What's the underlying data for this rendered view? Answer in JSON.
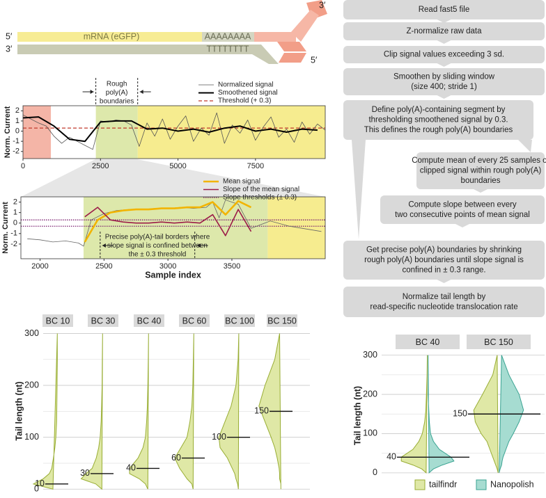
{
  "construct": {
    "top_left": "5′",
    "bottom_left": "3′",
    "mrna": "mRNA (eGFP)",
    "polya": "AAAAAAAA",
    "polyt": "TTTTTTTT",
    "top_right": "3′",
    "bottom_right": "5′"
  },
  "flowchart": {
    "steps": [
      [
        "Read fast5 file"
      ],
      [
        "Z-normalize raw data"
      ],
      [
        "Clip signal values exceeding 3 sd."
      ],
      [
        "Smoothen by sliding window",
        "(size 400;  stride 1)"
      ],
      [
        "Define poly(A)-containing segment by",
        "thresholding smoothened signal by 0.3.",
        "This defines the rough poly(A) boundaries"
      ],
      [
        "Compute mean of every 25 samples of",
        "clipped signal within rough poly(A)",
        "boundaries"
      ],
      [
        "Compute slope between every",
        "two consecutive points of mean signal"
      ],
      [
        "Get precise poly(A) boundaries by shrinking",
        "rough poly(A) boundaries until slope signal is",
        "confined in ± 0.3 range."
      ],
      [
        "Normalize tail length by",
        "read-specific nucleotide translocation rate"
      ]
    ]
  },
  "chart_data": [
    {
      "type": "line",
      "ylabel": "Norm. Current",
      "xlim": [
        0,
        9750
      ],
      "xticks": [
        0,
        2500,
        5000,
        7500
      ],
      "ylim": [
        -2.7,
        2.5
      ],
      "yticks": [
        -2,
        -1,
        0,
        1,
        2
      ],
      "legend": "top-right",
      "regions": [
        {
          "start": 0,
          "end": 900,
          "color": "#f4b5a7"
        },
        {
          "start": 2350,
          "end": 3700,
          "color": "#dde8ab"
        },
        {
          "start": 3700,
          "end": 9750,
          "color": "#f6ec8f"
        }
      ],
      "series": [
        {
          "name": "Normalized signal",
          "color": "#555555",
          "x": [
            0,
            250,
            500,
            750,
            1000,
            1250,
            1500,
            1750,
            2000,
            2250,
            2500,
            2750,
            3000,
            3250,
            3500,
            3750,
            4000,
            4250,
            4500,
            4750,
            5000,
            5250,
            5500,
            5750,
            6000,
            6250,
            6500,
            6750,
            7000,
            7250,
            7500,
            7750,
            8000,
            8250,
            8500,
            8750,
            9000,
            9250,
            9500,
            9750
          ],
          "values": [
            1.6,
            1.2,
            0.8,
            0.5,
            -0.5,
            -1.2,
            -0.6,
            -1.0,
            -1.4,
            -1.8,
            1.0,
            0.9,
            1.1,
            1.0,
            0.6,
            -1.5,
            0.8,
            -0.5,
            1.2,
            -0.8,
            0.5,
            1.5,
            -1.0,
            0.3,
            -0.4,
            1.8,
            -1.2,
            0.6,
            -0.2,
            1.1,
            -0.9,
            0.4,
            1.4,
            -0.6,
            0.2,
            -1.1,
            0.9,
            -0.3,
            0.7,
            0.1
          ]
        },
        {
          "name": "Smoothened signal",
          "color": "#000000",
          "x": [
            0,
            500,
            1000,
            1500,
            2000,
            2500,
            3000,
            3500,
            4000,
            4500,
            5000,
            5500,
            6000,
            6500,
            7000,
            7500,
            8000,
            8500,
            9000,
            9500
          ],
          "values": [
            1.3,
            1.4,
            0.5,
            -0.8,
            -1.0,
            0.9,
            1.0,
            1.0,
            0.2,
            0.3,
            0.0,
            0.2,
            -0.1,
            0.3,
            0.5,
            0.0,
            0.2,
            -0.1,
            0.2,
            0.1
          ]
        }
      ],
      "hlines": {
        "name": "Threshold (+ 0.3)",
        "color": "#c0392b",
        "values": [
          0.3
        ]
      },
      "annotation": {
        "text": [
          "Rough",
          "poly(A)",
          "boundaries"
        ],
        "boundaries": [
          2350,
          3700
        ]
      }
    },
    {
      "type": "line",
      "ylabel": "Norm. Current",
      "xlabel": "Sample index",
      "xlim": [
        1850,
        4230
      ],
      "xticks": [
        2000,
        2500,
        3000,
        3500
      ],
      "ylim": [
        -3.4,
        2.5
      ],
      "yticks": [
        -2,
        -1,
        0,
        1,
        2
      ],
      "legend": "top-right",
      "regions": [
        {
          "start": 2340,
          "end": 3780,
          "color": "#dde8ab"
        },
        {
          "start": 3780,
          "end": 4230,
          "color": "#f6ec8f"
        }
      ],
      "series": [
        {
          "color": "#666666",
          "x": [
            1900,
            2000,
            2100,
            2200,
            2300,
            2340,
            2400,
            2500,
            2600,
            2700,
            2800,
            2900,
            3000,
            3100,
            3200,
            3300,
            3350,
            3400,
            3450,
            3550,
            3650,
            3800,
            3950,
            4200
          ],
          "values": [
            -1.5,
            -1.6,
            -1.8,
            -1.7,
            -1.9,
            -2.2,
            0.3,
            0.9,
            1.2,
            1.3,
            1.3,
            1.4,
            1.4,
            1.5,
            1.4,
            1.5,
            2.0,
            0.5,
            2.2,
            1.8,
            -0.5,
            0.2,
            -0.3,
            -0.8
          ]
        },
        {
          "name": "Mean signal",
          "color": "#f2b400",
          "x": [
            2350,
            2450,
            2550,
            2650,
            2750,
            2850,
            2950,
            3050,
            3150,
            3250,
            3350,
            3450,
            3550,
            3650
          ],
          "values": [
            -1.8,
            0.3,
            1.0,
            1.2,
            1.3,
            1.3,
            1.4,
            1.4,
            1.5,
            1.5,
            2.0,
            0.8,
            2.1,
            1.5
          ]
        },
        {
          "name": "Slope of the mean signal",
          "color": "#9b1b48",
          "x": [
            2350,
            2450,
            2550,
            2650,
            2750,
            2850,
            2950,
            3050,
            3150,
            3250,
            3350,
            3450,
            3550,
            3650
          ],
          "values": [
            0.6,
            1.5,
            0.3,
            0.1,
            0.0,
            0.0,
            0.1,
            0.0,
            0.1,
            0.0,
            0.8,
            -1.2,
            1.3,
            -0.8
          ]
        }
      ],
      "hlines": {
        "name": "Slope thresholds (± 0.3)",
        "color": "#7a1e6e",
        "values": [
          0.3,
          -0.3
        ]
      },
      "annotation": {
        "text": [
          "Precise poly(A)-tail borders where",
          "slope signal is confined between",
          "the ± 0.3 threshold"
        ],
        "boundaries": [
          2470,
          3210
        ]
      }
    },
    {
      "type": "violin",
      "ylabel": "Tail length (nt)",
      "categories": [
        "BC 10",
        "BC 30",
        "BC 40",
        "BC 60",
        "BC 100",
        "BC 150"
      ],
      "ylim": [
        -9,
        310
      ],
      "yticks": [
        0,
        100,
        200,
        300
      ],
      "minor_yticks": [
        50,
        150,
        250
      ],
      "density_y": [
        0,
        10,
        20,
        30,
        40,
        60,
        80,
        100,
        130,
        160,
        200,
        250,
        300
      ],
      "series": [
        {
          "color": "#dfe8a6",
          "edge_color": "#98ad33",
          "values": [
            [
              0.2,
              1.0,
              0.6,
              0.35,
              0.25,
              0.18,
              0.12,
              0.08,
              0.05,
              0.04,
              0.03,
              0.02,
              0.02
            ],
            [
              0.05,
              0.3,
              0.9,
              0.7,
              0.45,
              0.28,
              0.18,
              0.12,
              0.08,
              0.06,
              0.04,
              0.03,
              0.02
            ],
            [
              0.05,
              0.15,
              0.4,
              0.8,
              0.8,
              0.45,
              0.25,
              0.15,
              0.1,
              0.07,
              0.05,
              0.03,
              0.02
            ],
            [
              0.05,
              0.1,
              0.3,
              0.45,
              0.6,
              0.8,
              0.55,
              0.3,
              0.18,
              0.1,
              0.06,
              0.04,
              0.02
            ],
            [
              0.05,
              0.08,
              0.15,
              0.2,
              0.3,
              0.5,
              0.8,
              0.85,
              0.6,
              0.35,
              0.15,
              0.06,
              0.03
            ],
            [
              0.05,
              0.05,
              0.1,
              0.1,
              0.12,
              0.2,
              0.3,
              0.45,
              0.7,
              0.95,
              0.7,
              0.3,
              0.1
            ]
          ]
        }
      ],
      "medians": [
        10,
        30,
        40,
        60,
        100,
        150
      ]
    },
    {
      "type": "violin",
      "ylabel": "Tail length (nt)",
      "categories": [
        "BC 40",
        "BC 150"
      ],
      "ylim": [
        -18,
        310
      ],
      "yticks": [
        0,
        100,
        200,
        300
      ],
      "minor_yticks": [
        50,
        150,
        250
      ],
      "legend": "bottom",
      "density_y": [
        0,
        10,
        20,
        30,
        40,
        60,
        80,
        100,
        130,
        160,
        200,
        250,
        300
      ],
      "series": [
        {
          "name": "tailfindr",
          "color": "#dfe8a6",
          "edge_color": "#98ad33",
          "values": [
            [
              0.05,
              0.2,
              0.5,
              0.9,
              0.9,
              0.5,
              0.3,
              0.18,
              0.1,
              0.06,
              0.04,
              0.02,
              0.01
            ],
            [
              0.02,
              0.05,
              0.1,
              0.15,
              0.2,
              0.3,
              0.4,
              0.6,
              0.8,
              0.85,
              0.55,
              0.2,
              0.05
            ]
          ]
        },
        {
          "name": "Nanopolish",
          "color": "#a6dcd1",
          "edge_color": "#3aa392",
          "values": [
            [
              0.05,
              0.2,
              0.5,
              0.9,
              0.8,
              0.4,
              0.2,
              0.1,
              0.06,
              0.04,
              0.02,
              0.02,
              0.02
            ],
            [
              0.02,
              0.05,
              0.1,
              0.12,
              0.15,
              0.25,
              0.35,
              0.5,
              0.7,
              0.85,
              0.7,
              0.35,
              0.1
            ]
          ]
        }
      ],
      "medians": [
        40,
        150
      ]
    }
  ]
}
